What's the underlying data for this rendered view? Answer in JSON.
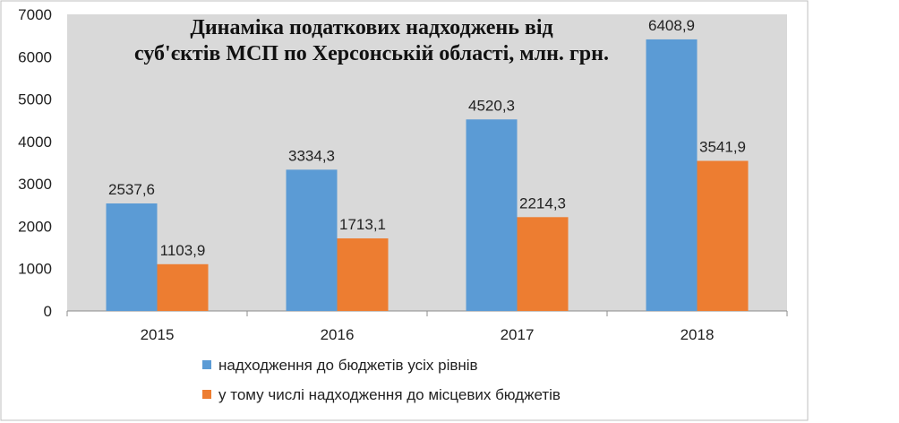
{
  "chart_data": {
    "type": "bar",
    "title_lines": [
      "Динаміка податкових надходжень від",
      "суб'єктів МСП по Херсонській області, млн. грн."
    ],
    "categories": [
      "2015",
      "2016",
      "2017",
      "2018"
    ],
    "series": [
      {
        "name": "надходження до  бюджетів усіх рівнів",
        "values": [
          2537.6,
          3334.3,
          4520.3,
          6408.9
        ],
        "labels": [
          "2537,6",
          "3334,3",
          "4520,3",
          "6408,9"
        ],
        "color": "#5b9bd5"
      },
      {
        "name": "у тому числі надходження до  місцевих бюджетів",
        "values": [
          1103.9,
          1713.1,
          2214.3,
          3541.9
        ],
        "labels": [
          "1103,9",
          "1713,1",
          "2214,3",
          "3541,9"
        ],
        "color": "#ed7d31"
      }
    ],
    "ylim": [
      0,
      7000
    ],
    "yticks": [
      0,
      1000,
      2000,
      3000,
      4000,
      5000,
      6000,
      7000
    ],
    "grid": false,
    "plot_background": "#d9d9d9",
    "legend_position": "bottom"
  }
}
